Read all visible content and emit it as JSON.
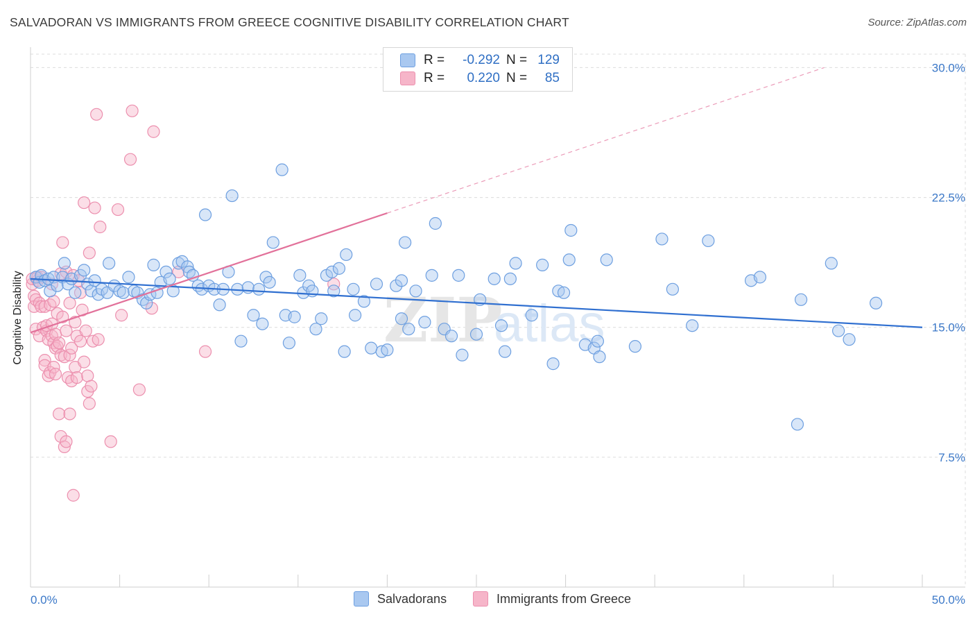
{
  "header": {
    "title": "SALVADORAN VS IMMIGRANTS FROM GREECE COGNITIVE DISABILITY CORRELATION CHART",
    "source": "Source: ZipAtlas.com"
  },
  "legend": {
    "rows": [
      {
        "key": "R =",
        "r": "-0.292",
        "n_label": "N =",
        "n": "129"
      },
      {
        "key": "R =",
        "r": "0.220",
        "n_label": "N =",
        "n": "85"
      }
    ],
    "bottom": [
      "Salvadorans",
      "Immigrants from Greece"
    ]
  },
  "watermark": {
    "zip": "ZIP",
    "atlas": "atlas"
  },
  "colors": {
    "blue_fill": "#a9c8f0",
    "blue_stroke": "#6d9fe0",
    "blue_line": "#2f6fd0",
    "pink_fill": "#f6b5c9",
    "pink_stroke": "#ec8fae",
    "pink_line": "#e2719a",
    "axis_text": "#3b78c8",
    "grid": "#dcdcdc"
  },
  "chart_data": {
    "type": "scatter",
    "title": "SALVADORAN VS IMMIGRANTS FROM GREECE COGNITIVE DISABILITY CORRELATION CHART",
    "xlabel": "",
    "ylabel": "Cognitive Disability",
    "x_tick_labels": [
      "0.0%",
      "50.0%"
    ],
    "y_tick_labels": [
      "7.5%",
      "15.0%",
      "22.5%",
      "30.0%"
    ],
    "y_ticks": [
      7.5,
      15.0,
      22.5,
      30.0
    ],
    "xlim": [
      0,
      50
    ],
    "ylim": [
      0,
      31.5
    ],
    "grid": true,
    "legend_position": "top-center",
    "series": [
      {
        "name": "Salvadorans",
        "color": "#6d9fe0",
        "r": -0.292,
        "n": 129,
        "trend": {
          "x": [
            0,
            50
          ],
          "y": [
            17.8,
            15.0
          ]
        },
        "points": [
          [
            0.3,
            17.9
          ],
          [
            0.5,
            17.6
          ],
          [
            0.6,
            18.0
          ],
          [
            0.8,
            17.7
          ],
          [
            1.0,
            17.8
          ],
          [
            1.1,
            17.1
          ],
          [
            1.3,
            17.9
          ],
          [
            1.5,
            17.4
          ],
          [
            1.8,
            17.9
          ],
          [
            1.9,
            18.7
          ],
          [
            2.1,
            17.5
          ],
          [
            2.3,
            17.8
          ],
          [
            2.5,
            17.0
          ],
          [
            2.8,
            18.0
          ],
          [
            3.0,
            18.3
          ],
          [
            3.2,
            17.5
          ],
          [
            3.4,
            17.1
          ],
          [
            3.6,
            17.7
          ],
          [
            3.8,
            16.9
          ],
          [
            4.0,
            17.2
          ],
          [
            4.3,
            17.0
          ],
          [
            4.4,
            18.7
          ],
          [
            4.7,
            17.4
          ],
          [
            5.0,
            17.1
          ],
          [
            5.2,
            17.0
          ],
          [
            5.5,
            17.9
          ],
          [
            5.8,
            17.1
          ],
          [
            6.0,
            17.0
          ],
          [
            6.3,
            16.6
          ],
          [
            6.5,
            16.4
          ],
          [
            6.7,
            16.9
          ],
          [
            6.9,
            18.6
          ],
          [
            7.1,
            17.0
          ],
          [
            7.3,
            17.6
          ],
          [
            7.6,
            18.2
          ],
          [
            7.8,
            17.8
          ],
          [
            8.0,
            17.1
          ],
          [
            8.3,
            18.7
          ],
          [
            8.5,
            18.8
          ],
          [
            8.8,
            18.5
          ],
          [
            8.9,
            18.2
          ],
          [
            9.1,
            18.0
          ],
          [
            9.4,
            17.4
          ],
          [
            9.6,
            17.2
          ],
          [
            9.8,
            21.5
          ],
          [
            10.0,
            17.4
          ],
          [
            10.3,
            17.2
          ],
          [
            10.6,
            16.3
          ],
          [
            10.8,
            17.2
          ],
          [
            11.1,
            18.2
          ],
          [
            11.3,
            22.6
          ],
          [
            11.6,
            17.2
          ],
          [
            11.8,
            14.2
          ],
          [
            12.2,
            17.3
          ],
          [
            12.5,
            15.7
          ],
          [
            12.8,
            17.2
          ],
          [
            13.0,
            15.2
          ],
          [
            13.2,
            17.9
          ],
          [
            13.4,
            17.6
          ],
          [
            13.6,
            19.9
          ],
          [
            14.1,
            24.1
          ],
          [
            14.3,
            15.7
          ],
          [
            14.5,
            14.1
          ],
          [
            14.8,
            15.6
          ],
          [
            15.1,
            18.0
          ],
          [
            15.3,
            17.0
          ],
          [
            15.6,
            17.4
          ],
          [
            15.8,
            17.1
          ],
          [
            16.0,
            14.9
          ],
          [
            16.3,
            15.5
          ],
          [
            16.6,
            18.0
          ],
          [
            16.9,
            18.2
          ],
          [
            17.0,
            17.1
          ],
          [
            17.3,
            18.4
          ],
          [
            17.6,
            13.6
          ],
          [
            17.7,
            19.2
          ],
          [
            18.1,
            17.2
          ],
          [
            18.2,
            15.7
          ],
          [
            18.7,
            16.5
          ],
          [
            19.1,
            13.8
          ],
          [
            19.4,
            17.5
          ],
          [
            19.7,
            13.6
          ],
          [
            20.0,
            13.7
          ],
          [
            20.5,
            17.4
          ],
          [
            20.8,
            17.7
          ],
          [
            20.8,
            15.5
          ],
          [
            21.0,
            19.9
          ],
          [
            21.2,
            14.9
          ],
          [
            21.6,
            17.1
          ],
          [
            22.1,
            15.3
          ],
          [
            22.5,
            18.0
          ],
          [
            22.7,
            21.0
          ],
          [
            23.2,
            14.9
          ],
          [
            23.6,
            14.5
          ],
          [
            24.0,
            18.0
          ],
          [
            24.2,
            13.4
          ],
          [
            25.0,
            14.6
          ],
          [
            25.2,
            16.6
          ],
          [
            26.0,
            17.8
          ],
          [
            26.4,
            15.1
          ],
          [
            26.6,
            13.6
          ],
          [
            26.9,
            17.8
          ],
          [
            27.2,
            18.7
          ],
          [
            28.1,
            15.7
          ],
          [
            28.7,
            18.6
          ],
          [
            29.3,
            12.9
          ],
          [
            29.6,
            17.1
          ],
          [
            29.9,
            17.0
          ],
          [
            30.2,
            18.9
          ],
          [
            30.3,
            20.6
          ],
          [
            31.1,
            14.0
          ],
          [
            31.6,
            13.8
          ],
          [
            31.8,
            14.2
          ],
          [
            31.9,
            13.3
          ],
          [
            32.3,
            18.9
          ],
          [
            33.9,
            13.9
          ],
          [
            35.4,
            20.1
          ],
          [
            36.0,
            17.2
          ],
          [
            37.1,
            15.1
          ],
          [
            38.0,
            20.0
          ],
          [
            40.4,
            17.7
          ],
          [
            40.9,
            17.9
          ],
          [
            43.2,
            16.6
          ],
          [
            44.9,
            18.7
          ],
          [
            45.3,
            14.8
          ],
          [
            45.9,
            14.3
          ],
          [
            47.4,
            16.4
          ],
          [
            43.0,
            9.4
          ]
        ]
      },
      {
        "name": "Immigrants from Greece",
        "color": "#ec8fae",
        "r": 0.22,
        "n": 85,
        "trend": {
          "x": [
            0,
            20
          ],
          "y": [
            14.7,
            21.6
          ]
        },
        "trend_extension": {
          "x": [
            20,
            44.5
          ],
          "y": [
            21.6,
            30.0
          ]
        },
        "points": [
          [
            0.1,
            17.5
          ],
          [
            0.1,
            17.8
          ],
          [
            0.2,
            16.8
          ],
          [
            0.2,
            16.2
          ],
          [
            0.3,
            14.9
          ],
          [
            0.3,
            16.6
          ],
          [
            0.4,
            17.7
          ],
          [
            0.4,
            17.9
          ],
          [
            0.5,
            16.4
          ],
          [
            0.5,
            14.5
          ],
          [
            0.6,
            16.2
          ],
          [
            0.6,
            17.9
          ],
          [
            0.7,
            15.0
          ],
          [
            0.8,
            13.1
          ],
          [
            0.8,
            12.8
          ],
          [
            0.8,
            16.2
          ],
          [
            0.9,
            14.8
          ],
          [
            0.9,
            15.1
          ],
          [
            1.0,
            12.2
          ],
          [
            1.0,
            14.3
          ],
          [
            1.1,
            12.4
          ],
          [
            1.1,
            16.3
          ],
          [
            1.2,
            14.5
          ],
          [
            1.2,
            17.5
          ],
          [
            1.2,
            15.2
          ],
          [
            1.3,
            12.7
          ],
          [
            1.3,
            14.1
          ],
          [
            1.3,
            16.5
          ],
          [
            1.4,
            13.8
          ],
          [
            1.4,
            12.3
          ],
          [
            1.4,
            14.6
          ],
          [
            1.5,
            15.8
          ],
          [
            1.5,
            13.9
          ],
          [
            1.6,
            14.1
          ],
          [
            1.6,
            10.0
          ],
          [
            1.7,
            13.4
          ],
          [
            1.7,
            18.1
          ],
          [
            1.7,
            8.7
          ],
          [
            1.8,
            15.6
          ],
          [
            1.8,
            19.9
          ],
          [
            1.9,
            13.3
          ],
          [
            1.9,
            8.1
          ],
          [
            2.0,
            14.8
          ],
          [
            2.0,
            8.4
          ],
          [
            2.0,
            18.2
          ],
          [
            2.1,
            12.1
          ],
          [
            2.2,
            16.4
          ],
          [
            2.2,
            13.4
          ],
          [
            2.3,
            13.8
          ],
          [
            2.3,
            11.9
          ],
          [
            2.4,
            18.0
          ],
          [
            2.4,
            5.3
          ],
          [
            2.5,
            15.3
          ],
          [
            2.5,
            12.7
          ],
          [
            2.6,
            12.1
          ],
          [
            2.6,
            14.5
          ],
          [
            2.7,
            17.7
          ],
          [
            2.8,
            14.2
          ],
          [
            2.8,
            17.0
          ],
          [
            2.9,
            16.0
          ],
          [
            3.0,
            22.2
          ],
          [
            3.0,
            13.0
          ],
          [
            3.1,
            14.8
          ],
          [
            3.2,
            11.3
          ],
          [
            3.2,
            12.2
          ],
          [
            3.3,
            10.6
          ],
          [
            3.3,
            19.3
          ],
          [
            3.4,
            11.6
          ],
          [
            3.5,
            14.2
          ],
          [
            3.6,
            21.9
          ],
          [
            3.8,
            14.3
          ],
          [
            3.9,
            20.8
          ],
          [
            3.7,
            27.3
          ],
          [
            4.5,
            8.4
          ],
          [
            4.9,
            21.8
          ],
          [
            5.1,
            15.7
          ],
          [
            5.6,
            24.7
          ],
          [
            5.7,
            27.5
          ],
          [
            6.1,
            11.4
          ],
          [
            6.8,
            16.1
          ],
          [
            6.9,
            26.3
          ],
          [
            8.3,
            18.2
          ],
          [
            9.8,
            13.6
          ],
          [
            17.0,
            17.5
          ],
          [
            2.2,
            10.0
          ]
        ]
      }
    ]
  }
}
